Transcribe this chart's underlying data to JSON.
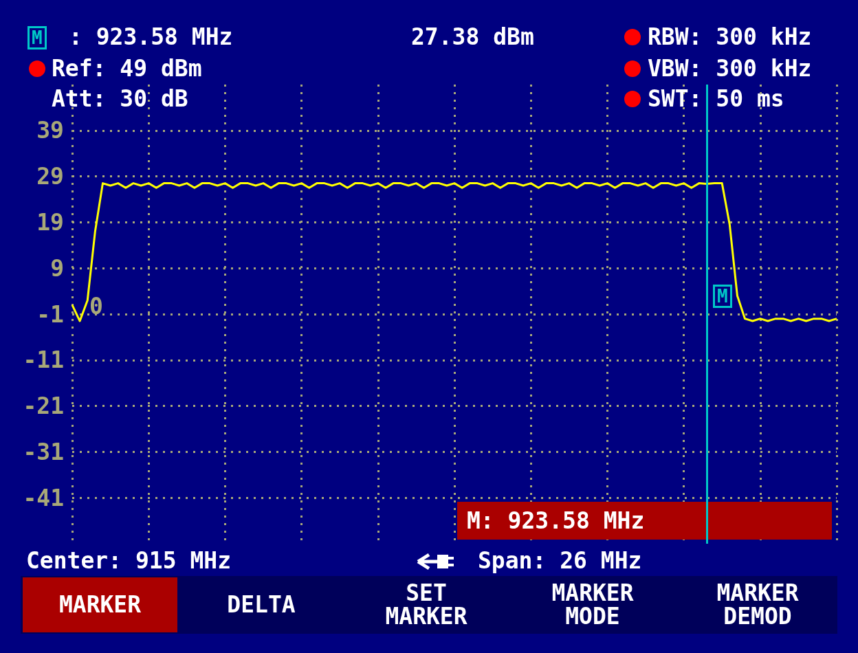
{
  "chart_data": {
    "type": "line",
    "annotations": [
      "M",
      ": 923.58 MHz",
      "27.38 dBm",
      "Ref: 49 dBm",
      "Att: 30 dB",
      "RBW: 300 kHz",
      "VBW: 300 kHz",
      "SWT: 50 ms",
      "0",
      "M: 923.58 MHz",
      "Center: 915 MHz",
      "Span: 26 MHz",
      "MARKER",
      "DELTA",
      "SET MARKER",
      "MARKER MODE",
      "MARKER DEMOD",
      "M"
    ],
    "categories": [
      null,
      null,
      null,
      null,
      null,
      null,
      null,
      null,
      null,
      null,
      null,
      null,
      null,
      null,
      null,
      null,
      null,
      null,
      null,
      null,
      null,
      null,
      null,
      null,
      null,
      null,
      null,
      null,
      null,
      null,
      null,
      null,
      null,
      null,
      null,
      null,
      null,
      null,
      null,
      null,
      null,
      null,
      null,
      null,
      null,
      null,
      null,
      null,
      null,
      null,
      null,
      null,
      null,
      null,
      null,
      null,
      null,
      null,
      null,
      null,
      null,
      null,
      null,
      null,
      null,
      null,
      null,
      null,
      null,
      null,
      null,
      null,
      null,
      null,
      null,
      null,
      null,
      null,
      null,
      null,
      null,
      null,
      null,
      null,
      null,
      null,
      null,
      null,
      null,
      null,
      null,
      null,
      null,
      null,
      null,
      null,
      null,
      null,
      null,
      null,
      null
    ],
    "series": [
      {
        "color": "#ffff00",
        "values": [
          1,
          -2.5,
          2,
          17,
          27.5,
          27,
          27.5,
          26.5,
          27.5,
          27,
          27.5,
          26.5,
          27.5,
          27.5,
          27,
          27.5,
          26.5,
          27.5,
          27.5,
          27,
          27.5,
          26.5,
          27.5,
          27.5,
          27,
          27.5,
          26.5,
          27.5,
          27.5,
          27,
          27.5,
          26.5,
          27.5,
          27.5,
          27,
          27.5,
          26.5,
          27.5,
          27.5,
          27,
          27.5,
          26.5,
          27.5,
          27.5,
          27,
          27.5,
          26.5,
          27.5,
          27.5,
          27,
          27.5,
          26.5,
          27.5,
          27.5,
          27,
          27.5,
          26.5,
          27.5,
          27.5,
          27,
          27.5,
          26.5,
          27.5,
          27.5,
          27,
          27.5,
          26.5,
          27.5,
          27.5,
          27,
          27.5,
          26.5,
          27.5,
          27.5,
          27,
          27.5,
          26.5,
          27.5,
          27.5,
          27,
          27.5,
          26.5,
          27.5,
          27.38,
          27.5,
          27.5,
          18.5,
          3,
          -2,
          -2.5,
          -2,
          -2.5,
          -2,
          -2,
          -2.5,
          -2,
          -2.5,
          -2,
          -2,
          -2.5,
          -2
        ]
      }
    ],
    "ylim": [
      -51,
      49
    ],
    "yticks": [
      -41,
      -31,
      -21,
      -11,
      -1,
      9,
      19,
      29,
      39
    ],
    "tick_labels": "y",
    "grid": true,
    "marker": "none",
    "line_style": "solid"
  }
}
